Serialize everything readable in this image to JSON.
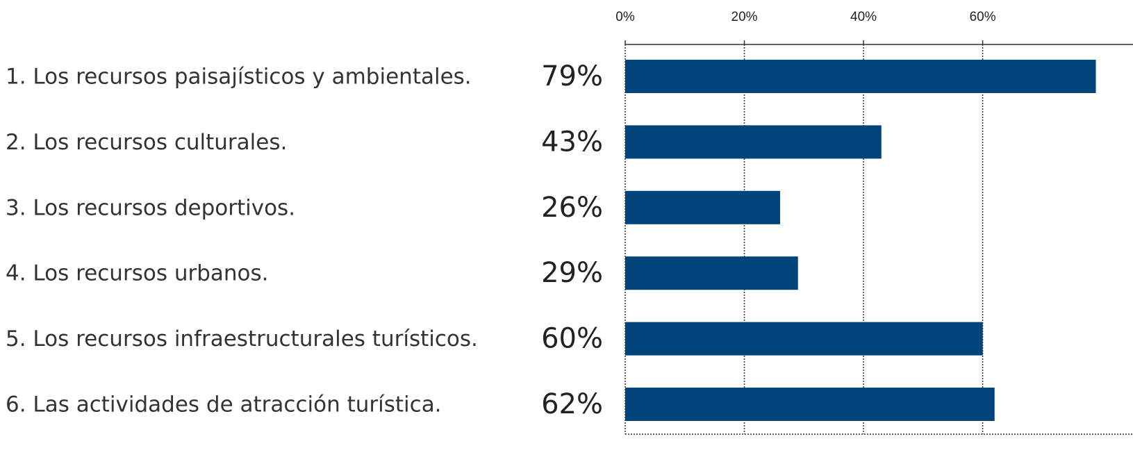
{
  "chart_data": {
    "type": "bar",
    "orientation": "horizontal",
    "categories": [
      "1. Los recursos paisajísticos y ambientales.",
      "2. Los recursos culturales.",
      "3. Los recursos deportivos.",
      "4. Los recursos urbanos.",
      "5. Los recursos infraestructurales turísticos.",
      "6. Las actividades de atracción turística."
    ],
    "values": [
      79,
      43,
      26,
      29,
      60,
      62
    ],
    "value_labels": [
      "79%",
      "43%",
      "26%",
      "29%",
      "60%",
      "62%"
    ],
    "color": "#00447c",
    "xlim": [
      0,
      85
    ],
    "xticks": [
      {
        "value": 0,
        "label": "0%"
      },
      {
        "value": 20,
        "label": "20%"
      },
      {
        "value": 40,
        "label": "40%"
      },
      {
        "value": 60,
        "label": "60%"
      }
    ],
    "grid": true
  }
}
